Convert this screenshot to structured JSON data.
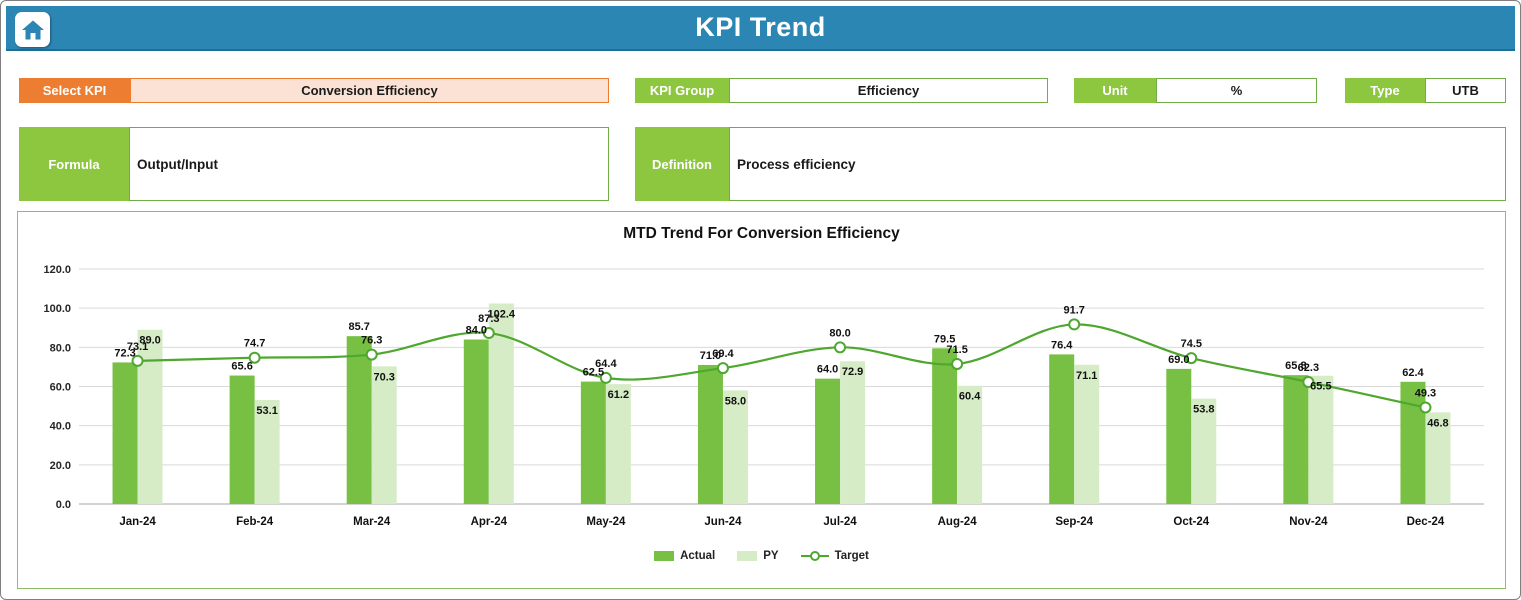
{
  "header": {
    "title": "KPI Trend",
    "home_icon": "home-icon"
  },
  "selectors": {
    "select_kpi": {
      "label": "Select KPI",
      "value": "Conversion Efficiency"
    },
    "kpi_group": {
      "label": "KPI Group",
      "value": "Efficiency"
    },
    "unit": {
      "label": "Unit",
      "value": "%"
    },
    "type": {
      "label": "Type",
      "value": "UTB"
    },
    "formula": {
      "label": "Formula",
      "value": "Output/Input"
    },
    "definition": {
      "label": "Definition",
      "value": "Process efficiency"
    }
  },
  "colors": {
    "header_bg": "#2b86b4",
    "accent_orange": "#ed7d31",
    "accent_orange_fill": "#fbe2d5",
    "accent_green": "#8dc63f",
    "field_border_green": "#70ad47",
    "actual_bar": "#77c043",
    "py_bar": "#d6ecc6",
    "target_line": "#4ea72e"
  },
  "chart_data": {
    "type": "bar",
    "title": "MTD Trend For Conversion Efficiency",
    "categories": [
      "Jan-24",
      "Feb-24",
      "Mar-24",
      "Apr-24",
      "May-24",
      "Jun-24",
      "Jul-24",
      "Aug-24",
      "Sep-24",
      "Oct-24",
      "Nov-24",
      "Dec-24"
    ],
    "series": [
      {
        "name": "Actual",
        "type": "bar",
        "color": "#77c043",
        "values": [
          72.3,
          65.6,
          85.7,
          84.0,
          62.5,
          71.0,
          64.0,
          79.5,
          76.4,
          69.0,
          65.8,
          62.4
        ]
      },
      {
        "name": "PY",
        "type": "bar",
        "color": "#d6ecc6",
        "values": [
          89.0,
          53.1,
          70.3,
          102.4,
          61.2,
          58.0,
          72.9,
          60.4,
          71.1,
          53.8,
          65.5,
          46.8
        ]
      },
      {
        "name": "Target",
        "type": "line",
        "color": "#4ea72e",
        "values": [
          73.1,
          74.7,
          76.3,
          87.3,
          64.4,
          69.4,
          80.0,
          71.5,
          91.7,
          74.5,
          62.3,
          49.3
        ]
      }
    ],
    "ylabel": "",
    "xlabel": "",
    "ylim": [
      0,
      120
    ],
    "ytick_step": 20,
    "ytick_format": "one_decimal",
    "grid": true,
    "legend_position": "bottom"
  }
}
